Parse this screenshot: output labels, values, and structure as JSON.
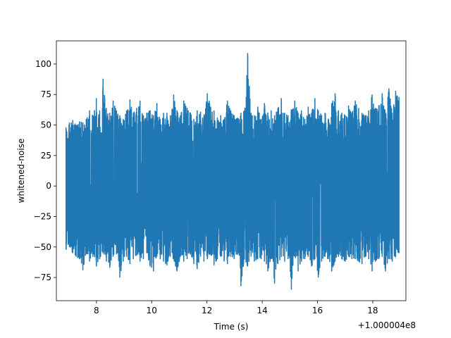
{
  "chart_data": {
    "type": "line",
    "title": "",
    "xlabel": "Time (s)",
    "ylabel": "whitened-noise",
    "x_offset_label": "+1.000004e8",
    "xlim": [
      6.55,
      19.2
    ],
    "ylim": [
      -94,
      119
    ],
    "xticks": [
      8,
      10,
      12,
      14,
      16,
      18
    ],
    "xtick_labels": [
      "8",
      "10",
      "12",
      "14",
      "16",
      "18"
    ],
    "yticks": [
      -75,
      -50,
      -25,
      0,
      25,
      50,
      75,
      100
    ],
    "ytick_labels": [
      "−75",
      "−50",
      "−25",
      "0",
      "25",
      "50",
      "75",
      "100"
    ],
    "grid": false,
    "legend": "none",
    "series": [
      {
        "color": "#1f77b4",
        "x_range": [
          6.9,
          18.95
        ],
        "envelope_upper": [
          48,
          52,
          54,
          50,
          53,
          52,
          55,
          62,
          58,
          72,
          62,
          88,
          64,
          60,
          70,
          62,
          58,
          55,
          62,
          71,
          60,
          64,
          70,
          58,
          60,
          62,
          58,
          68,
          55,
          60,
          60,
          58,
          75,
          62,
          58,
          70,
          64,
          60,
          55,
          62,
          61,
          58,
          76,
          65,
          62,
          56,
          58,
          55,
          70,
          62,
          58,
          56,
          60,
          62,
          109,
          60,
          58,
          65,
          55,
          68,
          60,
          62,
          58,
          64,
          72,
          60,
          58,
          63,
          70,
          60,
          62,
          55,
          65,
          60,
          72,
          62,
          58,
          60,
          55,
          68,
          76,
          62,
          60,
          58,
          66,
          60,
          70,
          64,
          60,
          58,
          62,
          75,
          64,
          66,
          76,
          60,
          80,
          60,
          78,
          73
        ],
        "envelope_lower": [
          -52,
          -50,
          -55,
          -58,
          -60,
          -69,
          -56,
          -62,
          -58,
          -66,
          -60,
          -55,
          -62,
          -67,
          -58,
          -56,
          -75,
          -62,
          -58,
          -64,
          -60,
          -57,
          -62,
          -60,
          -55,
          -66,
          -70,
          -58,
          -60,
          -62,
          -65,
          -58,
          -60,
          -70,
          -58,
          -62,
          -60,
          -56,
          -64,
          -68,
          -58,
          -62,
          -60,
          -56,
          -65,
          -60,
          -58,
          -62,
          -64,
          -58,
          -60,
          -56,
          -82,
          -60,
          -66,
          -58,
          -62,
          -60,
          -60,
          -62,
          -70,
          -60,
          -80,
          -64,
          -58,
          -62,
          -60,
          -85,
          -58,
          -70,
          -62,
          -60,
          -58,
          -66,
          -60,
          -75,
          -62,
          -58,
          -60,
          -70,
          -62,
          -58,
          -60,
          -62,
          -58,
          -60,
          -60,
          -62,
          -64,
          -58,
          -60,
          -70,
          -62,
          -60,
          -58,
          -70,
          -60,
          -62,
          -58,
          -55
        ]
      }
    ]
  }
}
